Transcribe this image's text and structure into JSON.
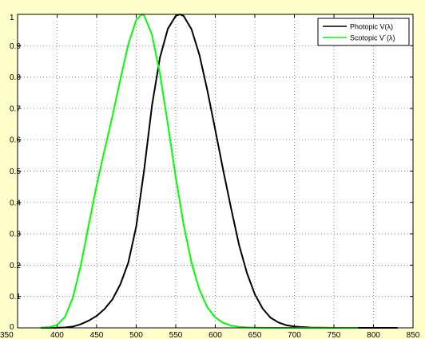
{
  "chart_data": {
    "type": "line",
    "title": "",
    "xlabel": "",
    "ylabel": "",
    "xlim": [
      350,
      850
    ],
    "ylim": [
      0,
      1
    ],
    "x_ticks": [
      "350",
      "400",
      "450",
      "500",
      "550",
      "600",
      "650",
      "700",
      "750",
      "800",
      "850"
    ],
    "y_ticks": [
      "0",
      "0.1",
      "0.2",
      "0.3",
      "0.4",
      "0.5",
      "0.6",
      "0.7",
      "0.8",
      "0.9",
      "1"
    ],
    "grid": true,
    "legend_position": "top-right",
    "series": [
      {
        "name": "Photopic V(λ)",
        "color": "#000000",
        "x": [
          380,
          400,
          410,
          420,
          430,
          440,
          450,
          460,
          470,
          480,
          490,
          500,
          510,
          520,
          530,
          540,
          550,
          555,
          560,
          570,
          580,
          590,
          600,
          610,
          620,
          630,
          640,
          650,
          660,
          670,
          680,
          690,
          700,
          720,
          750,
          800,
          830
        ],
        "y": [
          0.0,
          0.0004,
          0.0012,
          0.004,
          0.0116,
          0.023,
          0.038,
          0.06,
          0.091,
          0.139,
          0.208,
          0.323,
          0.503,
          0.71,
          0.862,
          0.954,
          0.995,
          1.0,
          0.995,
          0.952,
          0.87,
          0.757,
          0.631,
          0.503,
          0.381,
          0.265,
          0.175,
          0.107,
          0.061,
          0.032,
          0.017,
          0.0082,
          0.0041,
          0.001,
          0.0001,
          0.0,
          0.0
        ]
      },
      {
        "name": "Scotopic V´(λ)",
        "color": "#00ff00",
        "x": [
          380,
          390,
          400,
          410,
          420,
          430,
          440,
          450,
          460,
          470,
          480,
          490,
          500,
          507,
          510,
          520,
          530,
          540,
          550,
          560,
          570,
          580,
          590,
          600,
          610,
          620,
          630,
          640,
          650,
          660,
          680,
          700,
          780
        ],
        "y": [
          0.0006,
          0.0022,
          0.0093,
          0.0348,
          0.0966,
          0.1998,
          0.3281,
          0.455,
          0.567,
          0.676,
          0.793,
          0.904,
          0.982,
          1.0,
          0.997,
          0.935,
          0.811,
          0.65,
          0.481,
          0.3288,
          0.2076,
          0.1212,
          0.0655,
          0.0332,
          0.0159,
          0.0074,
          0.0033,
          0.0015,
          0.0007,
          0.0003,
          0.0001,
          0.0,
          0.0
        ]
      }
    ]
  }
}
